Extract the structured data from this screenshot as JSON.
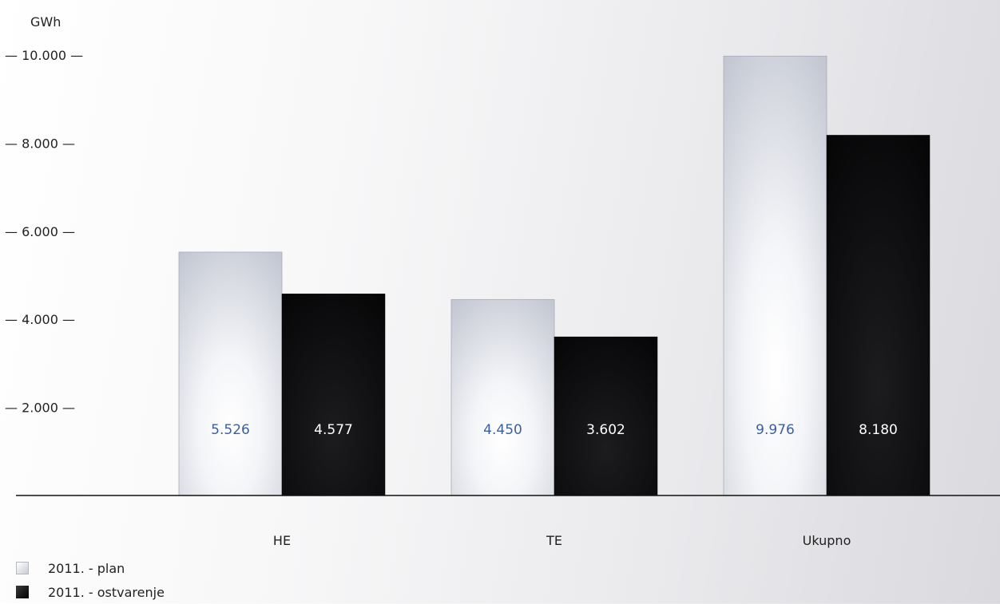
{
  "chart_data": {
    "type": "bar",
    "categories": [
      "HE",
      "TE",
      "Ukupno"
    ],
    "series": [
      {
        "name": "2011. - plan",
        "values": [
          5526,
          4450,
          9976
        ],
        "labels": [
          "5.526",
          "4.450",
          "9.976"
        ]
      },
      {
        "name": "2011. - ostvarenje",
        "values": [
          4577,
          3602,
          8180
        ],
        "labels": [
          "4.577",
          "3.602",
          "8.180"
        ]
      }
    ],
    "ylabel": "GWh",
    "ylim": [
      0,
      10000
    ],
    "yticks": [
      {
        "value": 2000,
        "label": "— 2.000 —"
      },
      {
        "value": 4000,
        "label": "— 4.000 —"
      },
      {
        "value": 6000,
        "label": "— 6.000 —"
      },
      {
        "value": 8000,
        "label": "— 8.000 —"
      },
      {
        "value": 10000,
        "label": "— 10.000 —"
      }
    ],
    "legend_position": "bottom-left",
    "grid": false,
    "colors": {
      "plan_label": "#3d5f9e",
      "actual_label": "#ffffff",
      "plan_fill": "#eef0f4",
      "actual_fill": "#0b0b0d"
    }
  }
}
